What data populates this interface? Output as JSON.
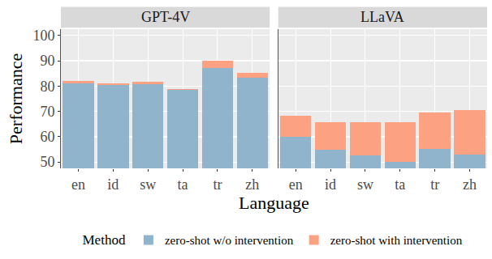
{
  "chart_data": {
    "type": "bar",
    "stacked": true,
    "grid": true,
    "legend": "bottom",
    "legend_title": "Method",
    "x_label": "Language",
    "y_label": "Performance",
    "categories": [
      "en",
      "id",
      "sw",
      "ta",
      "tr",
      "zh"
    ],
    "ylim": [
      47.5,
      102.5
    ],
    "yticks": [
      50,
      60,
      70,
      80,
      90,
      100
    ],
    "facets": [
      {
        "title": "GPT-4V",
        "series": [
          {
            "name": "zero-shot w/o intervention",
            "color": "#8fb4cb",
            "values": [
              81.0,
              80.5,
              80.8,
              78.5,
              87.0,
              83.3
            ]
          },
          {
            "name": "zero-shot with intervention",
            "color": "#fca283",
            "values": [
              1.0,
              0.5,
              0.9,
              0.2,
              3.0,
              2.0
            ]
          }
        ]
      },
      {
        "title": "LLaVA",
        "series": [
          {
            "name": "zero-shot w/o intervention",
            "color": "#8fb4cb",
            "values": [
              60.0,
              54.7,
              52.5,
              50.2,
              55.3,
              52.8
            ]
          },
          {
            "name": "zero-shot with intervention",
            "color": "#fca283",
            "values": [
              8.3,
              11.1,
              13.3,
              15.6,
              14.3,
              17.7
            ]
          }
        ]
      }
    ]
  }
}
